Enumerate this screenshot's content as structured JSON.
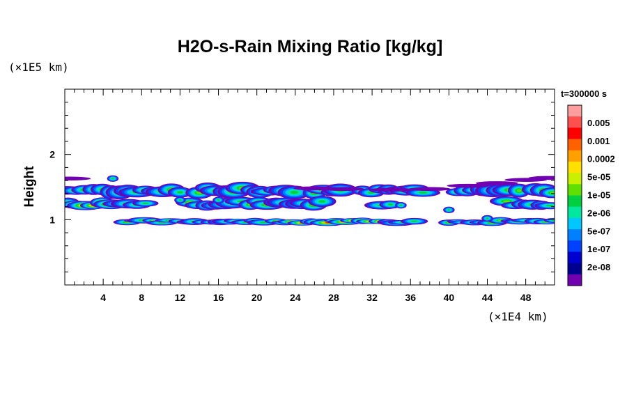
{
  "chart_data": {
    "type": "heatmap",
    "title": "H2O-s-Rain Mixing Ratio [kg/kg]",
    "ylabel": "Height",
    "x_unit": "(×1E4 km)",
    "y_unit": "(×1E5 km)",
    "time_label": "t=300000 s",
    "xlim": [
      0,
      51
    ],
    "ylim": [
      0,
      3
    ],
    "x_ticks": [
      4,
      8,
      12,
      16,
      20,
      24,
      28,
      32,
      36,
      40,
      44,
      48
    ],
    "x_tick_labels": [
      "4",
      "8",
      "12",
      "16",
      "20",
      "24",
      "28",
      "32",
      "36",
      "40",
      "44",
      "48"
    ],
    "y_ticks": [
      1,
      2
    ],
    "y_tick_labels": [
      "1",
      "2"
    ],
    "colorbar": {
      "labels": [
        "0.005",
        "0.001",
        "0.0002",
        "5e-05",
        "1e-05",
        "2e-06",
        "5e-07",
        "1e-07",
        "2e-08"
      ],
      "colors_top_to_bottom": [
        "#ff9e9e",
        "#ff5050",
        "#ff0000",
        "#ff6000",
        "#ffa000",
        "#ffe000",
        "#c8f000",
        "#60e000",
        "#00d040",
        "#00e8a0",
        "#00c8ff",
        "#0080ff",
        "#0040ff",
        "#0000d0",
        "#000090",
        "#7000b0"
      ]
    },
    "bands": [
      {
        "name": "upper-layer",
        "y_center": 1.45,
        "thickness": 0.12
      },
      {
        "name": "mid-layer",
        "y_center": 1.25,
        "thickness": 0.1
      },
      {
        "name": "lower-layer",
        "y_center": 0.97,
        "thickness": 0.06
      }
    ]
  }
}
